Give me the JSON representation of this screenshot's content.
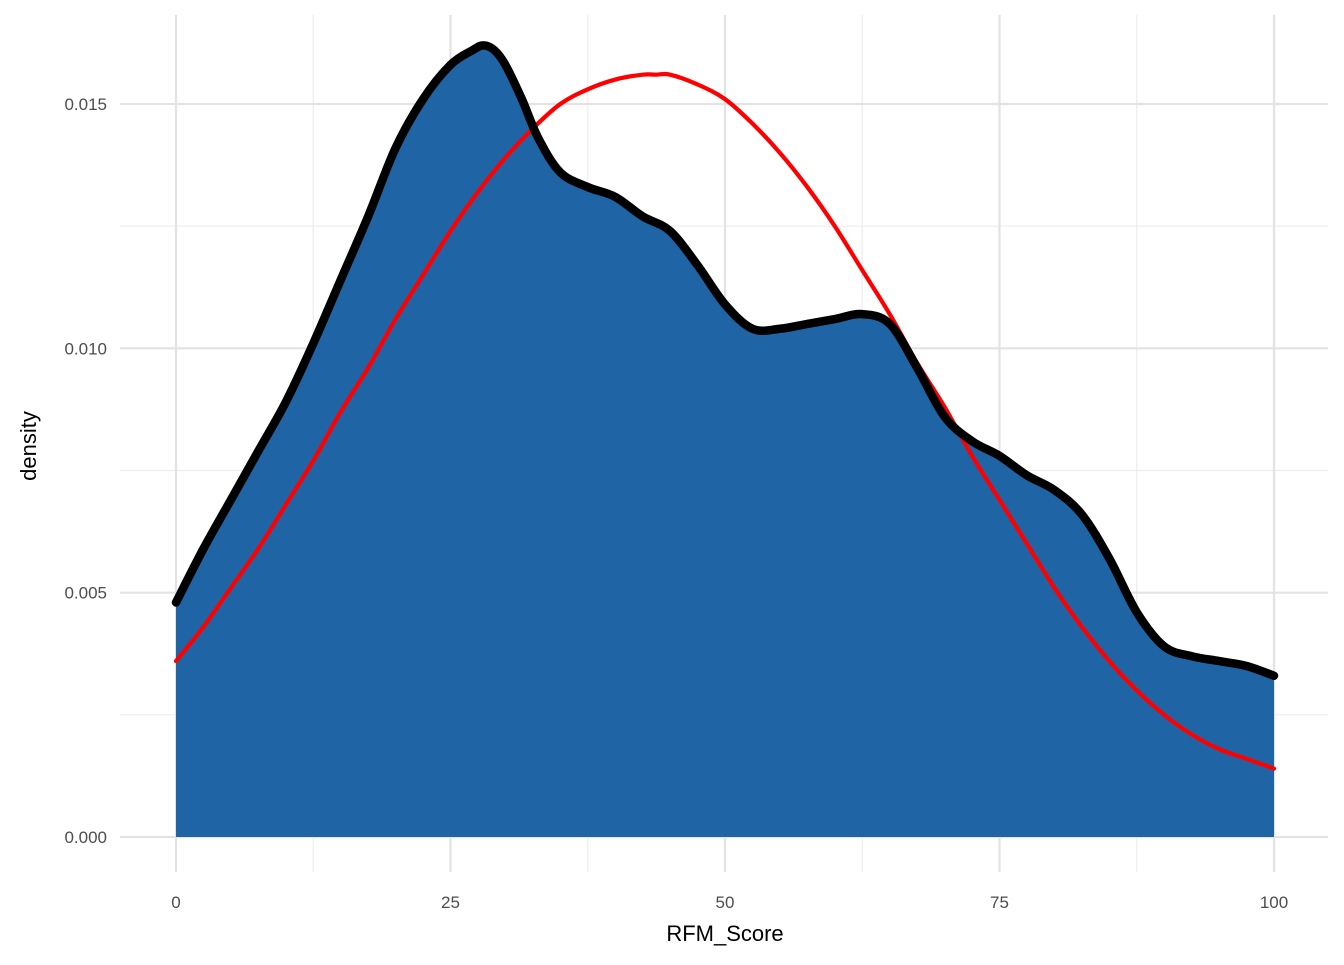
{
  "chart_data": {
    "type": "area",
    "title": "",
    "xlabel": "RFM_Score",
    "ylabel": "density",
    "xlim": [
      0,
      100
    ],
    "ylim": [
      0,
      0.016
    ],
    "x_ticks": [
      0,
      25,
      50,
      75,
      100
    ],
    "x_tick_labels": [
      "0",
      "25",
      "50",
      "75",
      "100"
    ],
    "y_ticks": [
      0,
      0.005,
      0.01,
      0.015
    ],
    "y_tick_labels": [
      "0.000",
      "0.005",
      "0.010",
      "0.015"
    ],
    "grid": true,
    "legend": "none",
    "series": [
      {
        "kind": "kernel-density",
        "fill": "#1f64a5",
        "stroke": "#000000",
        "x": [
          0,
          2.5,
          5,
          7.5,
          10,
          12.5,
          15,
          17.5,
          20,
          22.5,
          25,
          27,
          28,
          29,
          30,
          31.5,
          33,
          35,
          37.5,
          40,
          42.5,
          45,
          47.5,
          50,
          52.5,
          55,
          57.5,
          60,
          62.5,
          65,
          67.5,
          70,
          72.5,
          75,
          77.5,
          80,
          82.5,
          85,
          87.5,
          90,
          92.5,
          95,
          97.5,
          100
        ],
        "y": [
          0.0048,
          0.0059,
          0.0069,
          0.0079,
          0.0089,
          0.0101,
          0.0114,
          0.0127,
          0.0141,
          0.0151,
          0.0158,
          0.0161,
          0.0162,
          0.0161,
          0.0158,
          0.0151,
          0.0143,
          0.0136,
          0.0133,
          0.0131,
          0.0127,
          0.0124,
          0.0117,
          0.0109,
          0.0104,
          0.0104,
          0.0105,
          0.0106,
          0.0107,
          0.0105,
          0.0096,
          0.0086,
          0.0081,
          0.0078,
          0.0074,
          0.0071,
          0.0066,
          0.0057,
          0.0046,
          0.0039,
          0.0037,
          0.0036,
          0.0035,
          0.0033
        ]
      },
      {
        "kind": "normal-fit",
        "stroke": "#ff0000",
        "x": [
          0,
          2.5,
          5,
          7.5,
          10,
          12.5,
          15,
          17.5,
          20,
          22.5,
          25,
          27.5,
          30,
          32.5,
          35,
          37.5,
          40,
          42.5,
          43.7,
          45,
          47.5,
          50,
          52.5,
          55,
          57.5,
          60,
          62.5,
          65,
          67.5,
          70,
          72.5,
          75,
          77.5,
          80,
          82.5,
          85,
          87.5,
          90,
          92.5,
          95,
          97.5,
          100
        ],
        "y": [
          0.0036,
          0.0043,
          0.0051,
          0.0059,
          0.0068,
          0.0077,
          0.0087,
          0.0096,
          0.0106,
          0.0115,
          0.0124,
          0.0132,
          0.0139,
          0.0145,
          0.015,
          0.0153,
          0.0155,
          0.0156,
          0.0156,
          0.0156,
          0.0154,
          0.0151,
          0.0146,
          0.014,
          0.0133,
          0.0125,
          0.0116,
          0.0107,
          0.0097,
          0.0088,
          0.0078,
          0.0069,
          0.006,
          0.0051,
          0.0043,
          0.0036,
          0.003,
          0.0025,
          0.0021,
          0.0018,
          0.0016,
          0.0014
        ]
      }
    ]
  }
}
